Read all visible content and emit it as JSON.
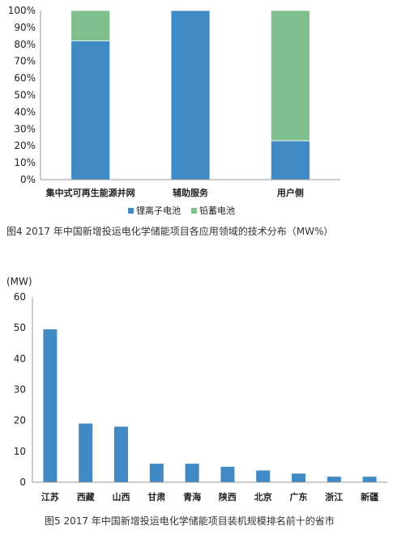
{
  "chart_data": [
    {
      "type": "bar",
      "stacked": true,
      "percent": true,
      "categories": [
        "集中式可再生能源并网",
        "辅助服务",
        "用户侧"
      ],
      "series": [
        {
          "name": "锂离子电池",
          "color": "#3f8ac4",
          "values": [
            82,
            100,
            23
          ]
        },
        {
          "name": "铅蓄电池",
          "color": "#7fbf8e",
          "values": [
            18,
            0,
            77
          ]
        }
      ],
      "ylim": [
        0,
        100
      ],
      "yticks": [
        "0%",
        "10%",
        "20%",
        "30%",
        "40%",
        "50%",
        "60%",
        "70%",
        "80%",
        "90%",
        "100%"
      ],
      "legend_position": "bottom",
      "caption": "图4 2017 年中国新增投运电化学储能项目各应用领域的技术分布（MW%）"
    },
    {
      "type": "bar",
      "categories": [
        "江苏",
        "西藏",
        "山西",
        "甘肃",
        "青海",
        "陕西",
        "北京",
        "广东",
        "浙江",
        "新疆"
      ],
      "values": [
        49.5,
        19,
        18,
        6,
        6,
        5,
        3.8,
        2.8,
        1.8,
        1.8
      ],
      "color": "#3f8ac4",
      "ylim": [
        0,
        60
      ],
      "yticks": [
        "0",
        "10",
        "20",
        "30",
        "40",
        "50",
        "60"
      ],
      "unit": "(MW)",
      "caption": "图5 2017 年中国新增投运电化学储能项目装机规模排名前十的省市"
    }
  ]
}
